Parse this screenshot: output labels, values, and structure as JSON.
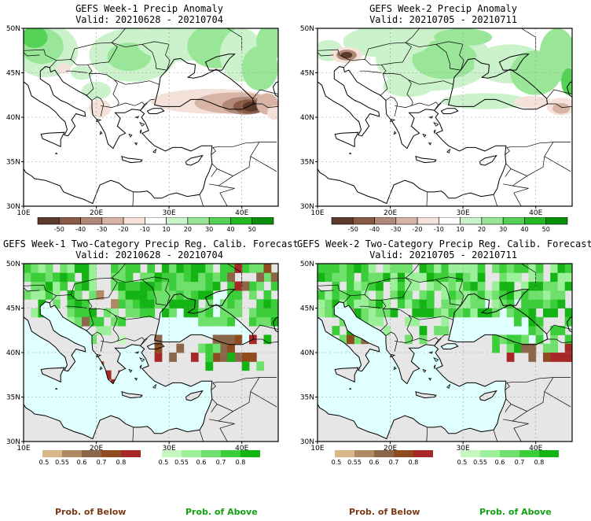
{
  "panels": [
    {
      "title": "GEFS Week-1 Precip Anomaly",
      "valid": "Valid: 20210628 - 20210704",
      "kind": "anom"
    },
    {
      "title": "GEFS Week-2 Precip Anomaly",
      "valid": "Valid: 20210705 - 20210711",
      "kind": "anom"
    },
    {
      "title": "GEFS Week-1 Two-Category Precip Reg. Calib. Forecast",
      "valid": "Valid: 20210628 - 20210704",
      "kind": "prob"
    },
    {
      "title": "GEFS Week-2 Two-Category Precip Reg. Calib. Forecast",
      "valid": "Valid: 20210705 - 20210711",
      "kind": "prob"
    }
  ],
  "axes": {
    "lat_labels": [
      "50N",
      "45N",
      "40N",
      "35N",
      "30N"
    ],
    "lon_labels": [
      "10E",
      "20E",
      "30E",
      "40E"
    ]
  },
  "anomaly_colorbar": {
    "labels": [
      "-50",
      "-40",
      "-30",
      "-20",
      "-10",
      "10",
      "20",
      "30",
      "40",
      "50"
    ],
    "colors": [
      "#5a3a2a",
      "#8a5a45",
      "#b08878",
      "#d8b4a6",
      "#f4e2da",
      "#ffffff",
      "#ccf2cc",
      "#99e699",
      "#55d155",
      "#22b822",
      "#0a8f0a"
    ]
  },
  "prob_colorbars": {
    "below": {
      "labels": [
        "0.5",
        "0.55",
        "0.6",
        "0.7",
        "0.8"
      ],
      "colors": [
        "#d8b88a",
        "#b08a62",
        "#8c6648",
        "#8f4a1e",
        "#a82828"
      ],
      "caption": "Prob. of Below"
    },
    "above": {
      "labels": [
        "0.5",
        "0.55",
        "0.6",
        "0.7",
        "0.8"
      ],
      "colors": [
        "#c6f7c0",
        "#9cf09a",
        "#6fe06c",
        "#3ccd3a",
        "#14b414"
      ],
      "caption": "Prob. of Above"
    }
  },
  "colors": {
    "sea": "#e0ffff",
    "land_gray": "#e6e6e6",
    "coast": "#000000",
    "below_caption": "#7a3a16",
    "above_caption": "#14a014"
  }
}
